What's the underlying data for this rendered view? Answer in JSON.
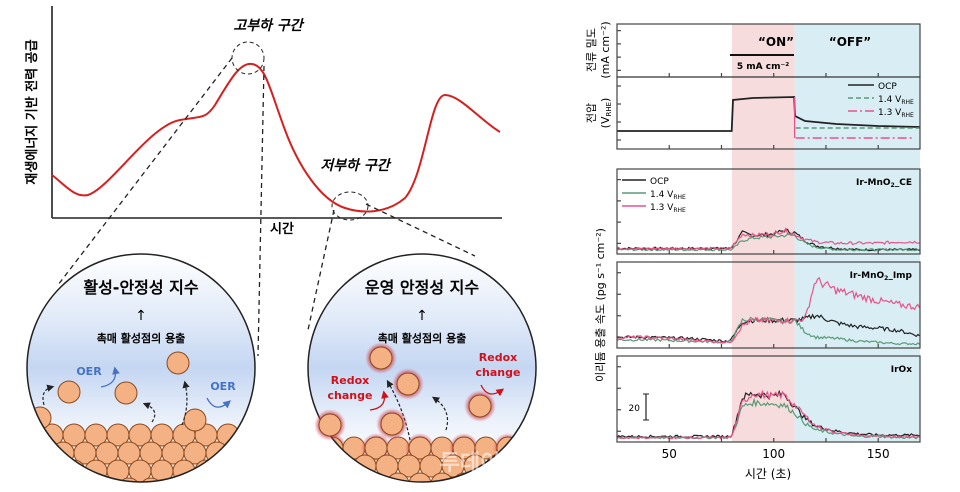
{
  "left_diagram": {
    "y_axis_label": "재생에너지 기반 전력 공급",
    "x_axis_label": "시간",
    "high_load_label": "고부하 구간",
    "low_load_label": "저부하 구간",
    "curve_color": "#d62020",
    "left_bubble": {
      "title": "활성-안정성 지수",
      "arrow": "↑",
      "subtitle": "촉매 활성점의 용출",
      "oer_label_1": "OER",
      "oer_label_2": "OER"
    },
    "right_bubble": {
      "title": "운영 안정성 지수",
      "arrow": "↑",
      "subtitle": "촉매 활성점의 용출",
      "redox_label_1a": "Redox",
      "redox_label_1b": "change",
      "redox_label_2a": "Redox",
      "redox_label_2b": "change"
    },
    "particle_color": "#f4b183",
    "oer_color": "#4472c4",
    "redox_color": "#d0101a",
    "watermark": "한성 제어 신문 투데이"
  },
  "chart_data": [
    {
      "type": "line",
      "panel": "current",
      "ylabel": "전류 밀도 (mA cm-2)",
      "ylabel_main": "전류 밀도",
      "ylabel_unit": "(mA cm⁻²)",
      "on_label": "“ON”",
      "off_label": "“OFF”",
      "current_label": "5 mA cm⁻²",
      "on_range": [
        80,
        110
      ],
      "off_range": [
        110,
        170
      ]
    },
    {
      "type": "line",
      "panel": "voltage",
      "ylabel_main": "전압",
      "ylabel_unit": "(V",
      "ylabel_sub": "RHE",
      "ylabel_close": ")",
      "legend": [
        {
          "name": "OCP",
          "color": "#222222",
          "style": "solid"
        },
        {
          "name": "1.4 V",
          "sub": "RHE",
          "color": "#5a9a78",
          "style": "dash"
        },
        {
          "name": "1.3 V",
          "sub": "RHE",
          "color": "#e8548a",
          "style": "dashdot"
        }
      ],
      "x": [
        25,
        79.9,
        80.5,
        90,
        109.8,
        110.2,
        115,
        130,
        150,
        170
      ],
      "ocp": [
        1.37,
        1.37,
        1.68,
        1.7,
        1.71,
        1.52,
        1.47,
        1.44,
        1.42,
        1.41
      ],
      "hold_1_4": 1.4,
      "hold_1_3": 1.3
    },
    {
      "type": "line",
      "xlabel": "시간 (초)",
      "ylabel": "이리듐 용출 속도 (pg s⁻¹ cm⁻²)",
      "xlim": [
        25,
        170
      ],
      "xticks": [
        50,
        100,
        150
      ],
      "scale_bar_label": "20",
      "x": [
        25,
        40,
        60,
        78,
        80,
        85,
        90,
        100,
        105,
        110,
        115,
        120,
        130,
        140,
        150,
        160,
        170
      ],
      "legend": [
        {
          "name": "OCP",
          "color": "#222222"
        },
        {
          "name": "1.4 V",
          "sub": "RHE",
          "color": "#5a9a78"
        },
        {
          "name": "1.3 V",
          "sub": "RHE",
          "color": "#e8548a"
        }
      ],
      "panels": [
        {
          "label": "Ir-MnO",
          "label_sub": "2",
          "label_tail": "_CE",
          "series": [
            {
              "name": "OCP",
              "values": [
                2,
                2,
                2,
                2,
                3,
                14,
                12,
                13,
                16,
                14,
                8,
                4,
                2,
                1,
                1,
                1,
                1
              ]
            },
            {
              "name": "1.4 V RHE",
              "values": [
                1,
                1,
                1,
                1,
                1,
                8,
                10,
                11,
                12,
                12,
                6,
                3,
                1,
                1,
                1,
                1,
                1
              ]
            },
            {
              "name": "1.3 V RHE",
              "values": [
                2,
                2,
                2,
                2,
                3,
                13,
                12,
                13,
                16,
                13,
                9,
                7,
                6,
                6,
                6,
                7,
                7
              ]
            }
          ]
        },
        {
          "label": "Ir-MnO",
          "label_sub": "2",
          "label_tail": "_Imp",
          "series": [
            {
              "name": "OCP",
              "values": [
                6,
                6,
                5,
                3,
                5,
                18,
                19,
                19,
                19,
                19,
                20,
                23,
                17,
                14,
                13,
                11,
                7
              ]
            },
            {
              "name": "1.4 V RHE",
              "values": [
                4,
                4,
                3,
                2,
                4,
                19,
                20,
                19,
                18,
                19,
                10,
                6,
                5,
                3,
                2,
                1,
                1
              ]
            },
            {
              "name": "1.3 V RHE",
              "values": [
                6,
                6,
                4,
                2,
                3,
                15,
                19,
                19,
                19,
                19,
                20,
                50,
                42,
                38,
                34,
                31,
                29
              ]
            }
          ]
        },
        {
          "label": "IrOx",
          "label_sub": "",
          "label_tail": "",
          "series": [
            {
              "name": "OCP",
              "values": [
                2,
                2,
                2,
                2,
                3,
                32,
                35,
                33,
                35,
                25,
                16,
                10,
                6,
                4,
                3,
                3,
                3
              ]
            },
            {
              "name": "1.4 V RHE",
              "values": [
                1,
                1,
                1,
                1,
                2,
                25,
                28,
                27,
                26,
                20,
                12,
                7,
                4,
                2,
                2,
                1,
                1
              ]
            },
            {
              "name": "1.3 V RHE",
              "values": [
                1,
                1,
                1,
                1,
                2,
                28,
                35,
                33,
                34,
                26,
                18,
                10,
                5,
                3,
                2,
                2,
                2
              ]
            }
          ]
        }
      ],
      "on_color": "#f6dcdc",
      "off_color": "#d8eef4"
    }
  ]
}
